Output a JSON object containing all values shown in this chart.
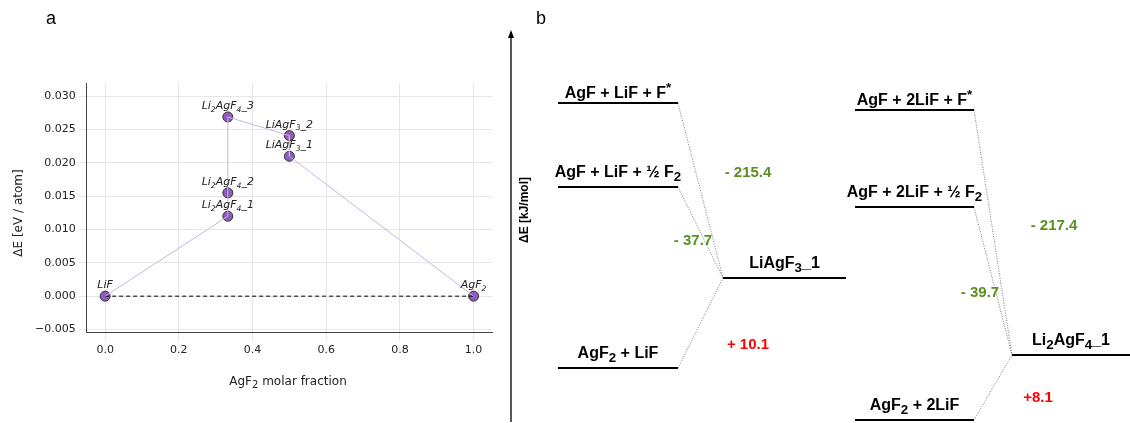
{
  "chart_data": [
    {
      "type": "scatter",
      "title": "a",
      "xlabel": "AgF$_{2}$ molar fraction",
      "ylabel": "ΔE [eV / atom]",
      "series": [
        {
          "type": "line",
          "color": "#c8b4e2",
          "marker": "none",
          "x": [
            0,
            0.333,
            0.333,
            0.5,
            0.5,
            1
          ],
          "values": [
            0,
            0.012,
            0.0269,
            0.0241,
            0.021,
            0
          ]
        },
        {
          "type": "line",
          "color": "#000000",
          "line_style": "dashed",
          "marker": "none",
          "x": [
            0,
            1
          ],
          "values": [
            0,
            0
          ]
        },
        {
          "type": "scatter",
          "color": "#8e5bbf",
          "x": [
            0,
            0.333,
            0.333,
            0.333,
            0.5,
            0.5,
            1
          ],
          "values": [
            0,
            0.012,
            0.0155,
            0.0269,
            0.0241,
            0.021,
            0
          ]
        }
      ],
      "marker": "circle",
      "xlim": [
        -0.05,
        1.05
      ],
      "xticks": [
        {
          "value": 0,
          "label": "0.0"
        },
        {
          "value": 0.2,
          "label": "0.2"
        },
        {
          "value": 0.4,
          "label": "0.4"
        },
        {
          "value": 0.6,
          "label": "0.6"
        },
        {
          "value": 0.8,
          "label": "0.8"
        },
        {
          "value": 1,
          "label": "1.0"
        }
      ],
      "ylim": [
        -0.0055,
        0.032
      ],
      "yticks": [
        {
          "value": -0.005,
          "label": "−0.005"
        },
        {
          "value": 0,
          "label": "0.000"
        },
        {
          "value": 0.005,
          "label": "0.005"
        },
        {
          "value": 0.01,
          "label": "0.010"
        },
        {
          "value": 0.015,
          "label": "0.015"
        },
        {
          "value": 0.02,
          "label": "0.020"
        },
        {
          "value": 0.025,
          "label": "0.025"
        },
        {
          "value": 0.03,
          "label": "0.030"
        }
      ],
      "grid": true,
      "legend": false,
      "annotations": [
        {
          "text": "LiF",
          "x": 0,
          "y": 0
        },
        {
          "text": "Li$_{2}$AgF$_{4}$_1",
          "x": 0.333,
          "y": 0.012
        },
        {
          "text": "Li$_{2}$AgF$_{4}$_2",
          "x": 0.333,
          "y": 0.0155
        },
        {
          "text": "Li$_{2}$AgF$_{4}$_3",
          "x": 0.333,
          "y": 0.0269
        },
        {
          "text": "LiAgF$_{3}$_2",
          "x": 0.5,
          "y": 0.0241
        },
        {
          "text": "LiAgF$_{3}$_1",
          "x": 0.5,
          "y": 0.021
        },
        {
          "text": "AgF$_{2}$",
          "x": 1,
          "y": 0
        }
      ]
    },
    {
      "type": "other",
      "title": "b",
      "ylabel": "ΔE [kJ/mol]",
      "categories": [
        "AgF + LiF + F$^{*}$",
        "AgF + LiF + ½ F$_{2}$",
        "AgF$_{2}$ + LiF",
        "LiAgF$_{3}$_1",
        "AgF + 2LiF + F$^{*}$",
        "AgF + 2LiF + ½ F$_{2}$",
        "Li$_{2}$AgF$_{4}$_1",
        "AgF$_{2}$ + 2LiF"
      ],
      "annotations": [
        "- 215.4",
        "- 37.7",
        "+ 10.1",
        "- 217.4",
        "- 39.7",
        "+8.1"
      ],
      "colors": [
        "#5b8f22",
        "#5b8f22",
        "#ff0000",
        "#5b8f22",
        "#5b8f22",
        "#ff0000"
      ]
    }
  ]
}
